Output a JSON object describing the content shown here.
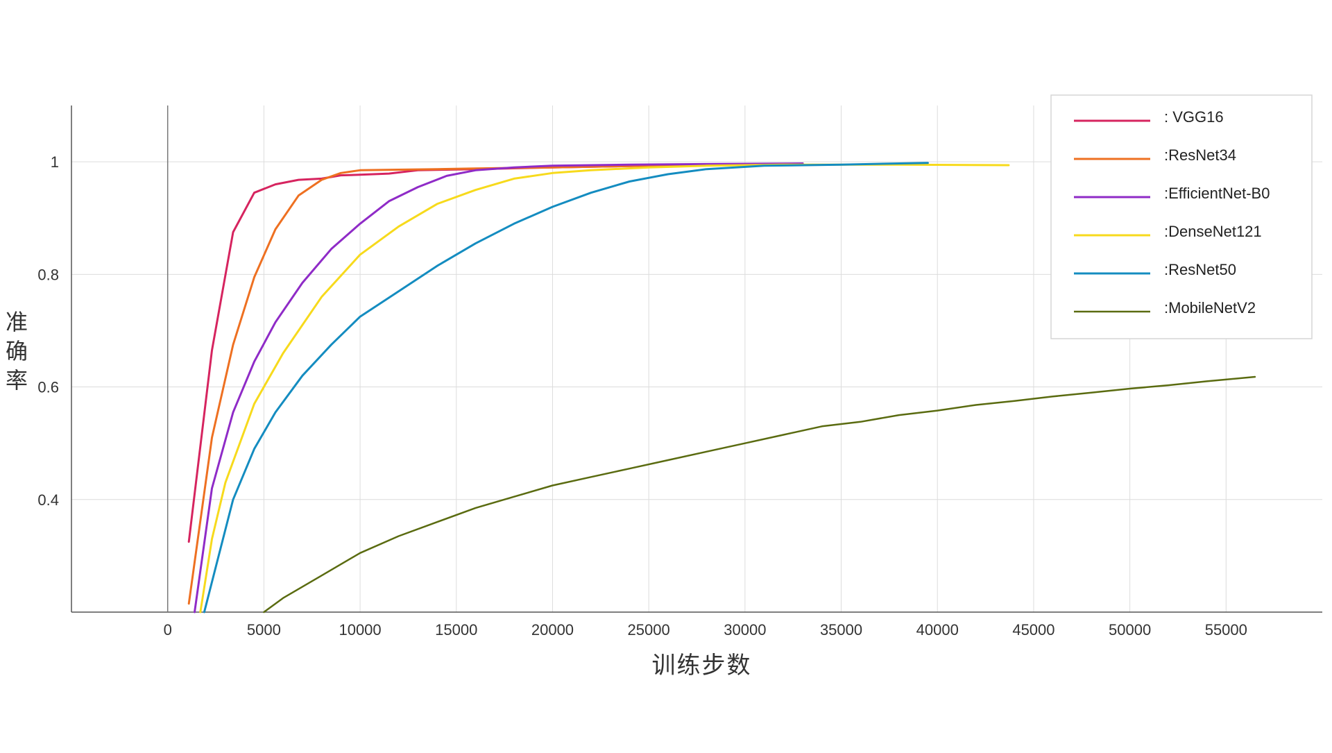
{
  "chart_data": {
    "type": "line",
    "title": "",
    "xlabel": "训练步数",
    "ylabel": "准确率",
    "xlim": [
      -5000,
      60000
    ],
    "ylim": [
      0.2,
      1.1
    ],
    "x_ticks": [
      0,
      5000,
      10000,
      15000,
      20000,
      25000,
      30000,
      35000,
      40000,
      45000,
      50000,
      55000
    ],
    "x_tick_labels": [
      "0",
      "5000",
      "10000",
      "15000",
      "20000",
      "25000",
      "30000",
      "35000",
      "40000",
      "45000",
      "50000",
      "55000"
    ],
    "y_ticks": [
      0.4,
      0.6,
      0.8,
      1.0
    ],
    "y_tick_labels": [
      "0.4",
      "0.6",
      "0.8",
      "1"
    ],
    "grid": true,
    "legend_position": "top-right",
    "series": [
      {
        "name": ": VGG16",
        "color": "#d6245f",
        "stroke": 3,
        "x": [
          1100,
          2300,
          3400,
          4500,
          5600,
          6800,
          8000,
          9000,
          10000,
          11500,
          13000,
          14500,
          16000,
          20000,
          25000,
          30000,
          33000
        ],
        "y": [
          0.325,
          0.665,
          0.875,
          0.945,
          0.96,
          0.968,
          0.97,
          0.976,
          0.977,
          0.979,
          0.985,
          0.986,
          0.987,
          0.99,
          0.993,
          0.995,
          0.996
        ]
      },
      {
        "name": ":ResNet34",
        "color": "#ee7021",
        "stroke": 3,
        "x": [
          1100,
          2300,
          3400,
          4500,
          5600,
          6800,
          8000,
          9000,
          10000,
          12000,
          14000,
          16000,
          20000,
          25000,
          30000
        ],
        "y": [
          0.215,
          0.51,
          0.675,
          0.795,
          0.88,
          0.94,
          0.968,
          0.98,
          0.985,
          0.986,
          0.987,
          0.988,
          0.99,
          0.993,
          0.995
        ]
      },
      {
        "name": ":EfficientNet-B0",
        "color": "#8f2bc7",
        "stroke": 3,
        "x": [
          1400,
          2300,
          3400,
          4500,
          5600,
          7000,
          8500,
          10000,
          11500,
          13000,
          14500,
          16000,
          18000,
          20000,
          24000,
          28000,
          33000
        ],
        "y": [
          0.2,
          0.42,
          0.555,
          0.645,
          0.715,
          0.785,
          0.845,
          0.89,
          0.93,
          0.955,
          0.975,
          0.985,
          0.99,
          0.993,
          0.995,
          0.996,
          0.997
        ]
      },
      {
        "name": ":DenseNet121",
        "color": "#f7da1c",
        "stroke": 3,
        "x": [
          1700,
          2300,
          3000,
          4500,
          6000,
          8000,
          10000,
          12000,
          14000,
          16000,
          18000,
          20000,
          22000,
          25000,
          28000,
          32000,
          38000,
          43700
        ],
        "y": [
          0.2,
          0.33,
          0.43,
          0.57,
          0.66,
          0.76,
          0.835,
          0.885,
          0.925,
          0.95,
          0.97,
          0.98,
          0.985,
          0.99,
          0.993,
          0.995,
          0.995,
          0.994
        ]
      },
      {
        "name": ":ResNet50",
        "color": "#148cc0",
        "stroke": 3,
        "x": [
          1900,
          2500,
          3400,
          4500,
          5600,
          7000,
          8500,
          10000,
          12000,
          14000,
          16000,
          18000,
          20000,
          22000,
          24000,
          26000,
          28000,
          31000,
          35000,
          39500
        ],
        "y": [
          0.2,
          0.28,
          0.4,
          0.49,
          0.555,
          0.62,
          0.675,
          0.725,
          0.77,
          0.815,
          0.855,
          0.89,
          0.92,
          0.945,
          0.965,
          0.978,
          0.987,
          0.993,
          0.995,
          0.998
        ]
      },
      {
        "name": ":MobileNetV2",
        "color": "#5a6b10",
        "stroke": 2.5,
        "x": [
          5000,
          6000,
          8000,
          10000,
          12000,
          14000,
          16000,
          18000,
          20000,
          22000,
          24000,
          26000,
          28000,
          30000,
          32000,
          34000,
          36000,
          38000,
          40000,
          42000,
          44000,
          46000,
          48000,
          50000,
          52000,
          54000,
          56500
        ],
        "y": [
          0.2,
          0.225,
          0.265,
          0.305,
          0.335,
          0.36,
          0.385,
          0.405,
          0.425,
          0.44,
          0.455,
          0.47,
          0.485,
          0.5,
          0.515,
          0.53,
          0.538,
          0.55,
          0.558,
          0.568,
          0.575,
          0.583,
          0.59,
          0.597,
          0.603,
          0.61,
          0.618
        ]
      }
    ]
  }
}
